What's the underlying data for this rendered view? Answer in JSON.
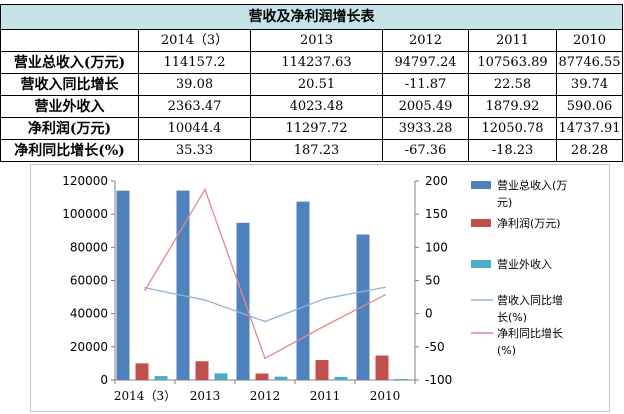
{
  "table": {
    "title": "营收及净利润增长表",
    "header": [
      "",
      "2014（3）",
      "2013",
      "2012",
      "2011",
      "2010"
    ],
    "rows": [
      {
        "label": "营业总收入(万元)",
        "values": [
          "114157.2",
          "114237.63",
          "94797.24",
          "107563.89",
          "87746.55"
        ]
      },
      {
        "label": "营收入同比增长",
        "values": [
          "39.08",
          "20.51",
          "-11.87",
          "22.58",
          "39.74"
        ]
      },
      {
        "label": "营业外收入",
        "values": [
          "2363.47",
          "4023.48",
          "2005.49",
          "1879.92",
          "590.06"
        ]
      },
      {
        "label": "净利润(万元)",
        "values": [
          "10044.4",
          "11297.72",
          "3933.28",
          "12050.78",
          "14737.91"
        ]
      },
      {
        "label": "净利同比增长(%)",
        "values": [
          "35.33",
          "187.23",
          "-67.36",
          "-18.23",
          "28.28"
        ]
      }
    ]
  },
  "chart_data": {
    "type": "bar",
    "categories": [
      "2014（3）",
      "2013",
      "2012",
      "2011",
      "2010"
    ],
    "y_left": {
      "min": 0,
      "max": 120000,
      "step": 20000,
      "ticks": [
        "0",
        "20000",
        "40000",
        "60000",
        "80000",
        "100000",
        "120000"
      ]
    },
    "y_right": {
      "min": -100,
      "max": 200,
      "step": 50,
      "ticks": [
        "-100",
        "-50",
        "0",
        "50",
        "100",
        "150",
        "200"
      ]
    },
    "grid": false,
    "legend": "right",
    "series": [
      {
        "name": "营业总收入(万元)",
        "kind": "bar",
        "axis": "left",
        "color": "#4f81bd",
        "values": [
          114157.2,
          114237.63,
          94797.24,
          107563.89,
          87746.55
        ]
      },
      {
        "name": "净利润(万元)",
        "kind": "bar",
        "axis": "left",
        "color": "#c0504d",
        "values": [
          10044.4,
          11297.72,
          3933.28,
          12050.78,
          14737.91
        ]
      },
      {
        "name": "营业外收入",
        "kind": "bar",
        "axis": "left",
        "color": "#4bacc6",
        "values": [
          2363.47,
          4023.48,
          2005.49,
          1879.92,
          590.06
        ]
      },
      {
        "name": "营收入同比增长(%)",
        "kind": "line",
        "axis": "right",
        "color": "#95b3d7",
        "values": [
          39.08,
          20.51,
          -11.87,
          22.58,
          39.74
        ]
      },
      {
        "name": "净利同比增长(%)",
        "kind": "line",
        "axis": "right",
        "color": "#e6878a",
        "values": [
          35.33,
          187.23,
          -67.36,
          -18.23,
          28.28
        ]
      }
    ],
    "legend_labels": [
      [
        "营业总收入(万",
        "元)"
      ],
      [
        "净利润(万元)"
      ],
      [
        "营业外收入"
      ],
      [
        "营收入同比增",
        "长(%)"
      ],
      [
        "净利同比增长",
        "(%)"
      ]
    ]
  }
}
